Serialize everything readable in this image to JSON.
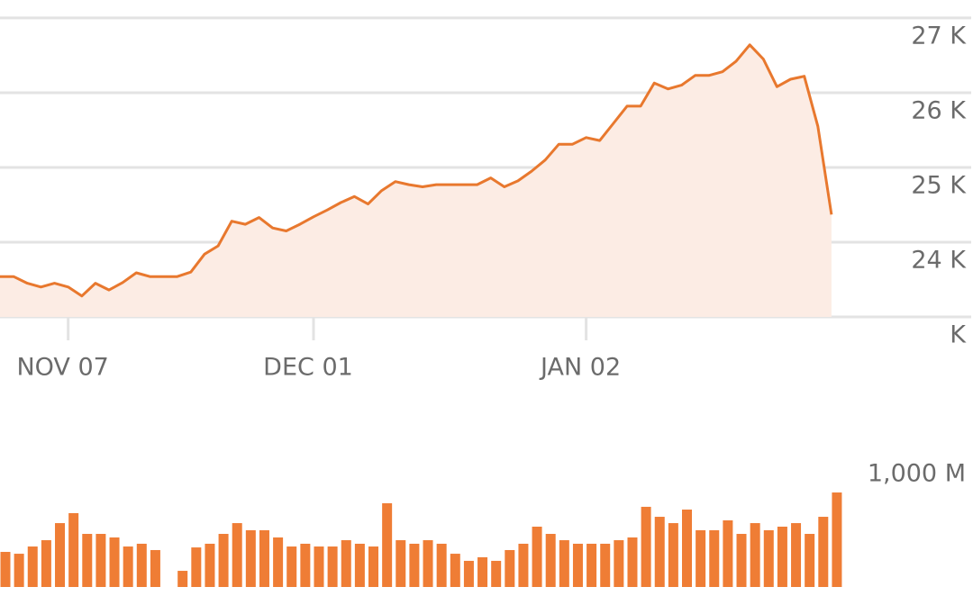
{
  "chart_data": [
    {
      "type": "area",
      "color": "#e8782e",
      "fill": "#fcece4",
      "grid": true,
      "categories": [
        null,
        null,
        null,
        null,
        null,
        "NOV 07",
        null,
        null,
        null,
        null,
        null,
        null,
        null,
        null,
        null,
        null,
        null,
        null,
        null,
        null,
        null,
        null,
        null,
        "DEC 01",
        null,
        null,
        null,
        null,
        null,
        null,
        null,
        null,
        null,
        null,
        null,
        null,
        null,
        null,
        null,
        null,
        null,
        null,
        null,
        "JAN 02",
        null,
        null,
        null,
        null,
        null,
        null,
        null,
        null,
        null,
        null,
        null,
        null,
        null,
        null,
        null,
        null,
        null,
        null
      ],
      "values": [
        23540,
        23540,
        23450,
        23400,
        23450,
        23400,
        23280,
        23450,
        23360,
        23460,
        23590,
        23540,
        23540,
        23540,
        23600,
        23840,
        23950,
        24280,
        24240,
        24330,
        24190,
        24150,
        24240,
        24340,
        24430,
        24530,
        24610,
        24510,
        24690,
        24810,
        24770,
        24740,
        24770,
        24770,
        24770,
        24770,
        24860,
        24740,
        24820,
        24950,
        25100,
        25310,
        25310,
        25400,
        25360,
        25590,
        25820,
        25820,
        26130,
        26050,
        26100,
        26230,
        26230,
        26280,
        26420,
        26640,
        26450,
        26080,
        26180,
        26220,
        25550,
        24370
      ],
      "ylim": [
        23000,
        27240
      ],
      "yticks": [
        {
          "value": 23000,
          "label": "K"
        },
        {
          "value": 24000,
          "label": "24 K"
        },
        {
          "value": 25000,
          "label": "25 K"
        },
        {
          "value": 26000,
          "label": "26 K"
        },
        {
          "value": 27000,
          "label": "27 K"
        }
      ]
    },
    {
      "type": "bar",
      "color": "#ef7d35",
      "values": [
        267,
        253,
        308,
        356,
        486,
        562,
        404,
        404,
        377,
        308,
        329,
        281,
        null,
        123,
        301,
        329,
        404,
        486,
        432,
        432,
        377,
        308,
        329,
        308,
        308,
        356,
        329,
        308,
        637,
        356,
        329,
        356,
        329,
        253,
        199,
        226,
        199,
        281,
        329,
        459,
        404,
        356,
        329,
        329,
        329,
        356,
        377,
        610,
        534,
        486,
        589,
        432,
        432,
        507,
        404,
        486,
        432,
        459,
        486,
        404,
        534,
        719
      ],
      "ylim": [
        0,
        1000
      ],
      "yticks": [
        {
          "value": 1000,
          "label": "1,000 M"
        }
      ]
    }
  ]
}
